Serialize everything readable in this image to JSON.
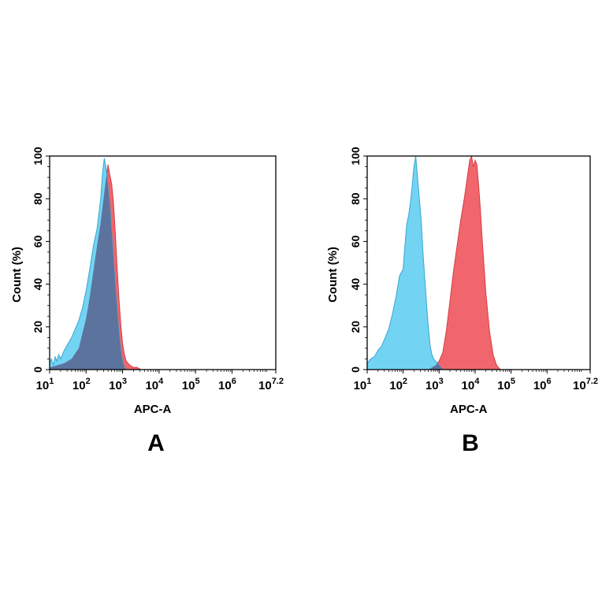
{
  "colors": {
    "control_fill": "#73d3f3",
    "control_edge": "#3aa6cf",
    "stained_fill": "#f0666c",
    "stained_edge": "#d43b44",
    "overlap_fill": "#5b6e99"
  },
  "chart_data": [
    {
      "panel": "A",
      "type": "area",
      "xlabel": "APC-A",
      "ylabel": "Count  (%)",
      "x_scale": "log",
      "xlim": [
        1,
        7.2
      ],
      "ylim": [
        0,
        100
      ],
      "x_ticks": [
        {
          "base": "10",
          "exp": "1"
        },
        {
          "base": "10",
          "exp": "2"
        },
        {
          "base": "10",
          "exp": "3"
        },
        {
          "base": "10",
          "exp": "4"
        },
        {
          "base": "10",
          "exp": "5"
        },
        {
          "base": "10",
          "exp": "6"
        },
        {
          "base": "10",
          "exp": "7.2"
        }
      ],
      "y_ticks": [
        "0",
        "20",
        "40",
        "60",
        "80",
        "100"
      ],
      "series": [
        {
          "color": "#73d3f3",
          "log10_x": [
            1.0,
            1.05,
            1.1,
            1.15,
            1.2,
            1.25,
            1.3,
            1.4,
            1.5,
            1.6,
            1.7,
            1.8,
            1.9,
            2.0,
            2.1,
            2.2,
            2.3,
            2.35,
            2.4,
            2.45,
            2.5,
            2.55,
            2.6,
            2.65,
            2.7,
            2.75,
            2.8,
            2.85,
            2.9,
            2.95,
            3.0,
            3.05,
            3.1
          ],
          "values": [
            3,
            5,
            2,
            6,
            4,
            7,
            5,
            9,
            12,
            15,
            19,
            23,
            29,
            37,
            47,
            58,
            66,
            73,
            80,
            92,
            99,
            94,
            85,
            77,
            64,
            52,
            39,
            28,
            17,
            9,
            4,
            1,
            0
          ]
        },
        {
          "color": "#f0666c",
          "log10_x": [
            1.0,
            1.2,
            1.4,
            1.6,
            1.8,
            2.0,
            2.1,
            2.2,
            2.3,
            2.4,
            2.45,
            2.5,
            2.55,
            2.6,
            2.65,
            2.7,
            2.75,
            2.8,
            2.85,
            2.9,
            2.95,
            3.0,
            3.05,
            3.1,
            3.2,
            3.3,
            3.4,
            3.5
          ],
          "values": [
            1,
            2,
            3,
            5,
            10,
            24,
            34,
            46,
            58,
            69,
            76,
            83,
            90,
            96,
            91,
            87,
            78,
            64,
            48,
            33,
            21,
            12,
            7,
            4,
            2,
            1,
            1,
            0
          ]
        }
      ]
    },
    {
      "panel": "B",
      "type": "area",
      "xlabel": "APC-A",
      "ylabel": "Count  (%)",
      "x_scale": "log",
      "xlim": [
        1,
        7.2
      ],
      "ylim": [
        0,
        100
      ],
      "x_ticks": [
        {
          "base": "10",
          "exp": "1"
        },
        {
          "base": "10",
          "exp": "2"
        },
        {
          "base": "10",
          "exp": "3"
        },
        {
          "base": "10",
          "exp": "4"
        },
        {
          "base": "10",
          "exp": "5"
        },
        {
          "base": "10",
          "exp": "6"
        },
        {
          "base": "10",
          "exp": "7.2"
        }
      ],
      "y_ticks": [
        "0",
        "20",
        "40",
        "60",
        "80",
        "100"
      ],
      "series": [
        {
          "color": "#73d3f3",
          "log10_x": [
            1.0,
            1.1,
            1.2,
            1.3,
            1.4,
            1.5,
            1.6,
            1.7,
            1.8,
            1.9,
            2.0,
            2.05,
            2.1,
            2.15,
            2.2,
            2.25,
            2.3,
            2.35,
            2.4,
            2.45,
            2.5,
            2.55,
            2.6,
            2.65,
            2.7,
            2.75,
            2.8,
            2.85,
            2.9,
            2.95,
            3.0,
            3.05,
            3.1
          ],
          "values": [
            3,
            5,
            6,
            9,
            11,
            15,
            19,
            26,
            34,
            44,
            47,
            58,
            68,
            72,
            78,
            86,
            95,
            100,
            90,
            80,
            70,
            55,
            43,
            31,
            20,
            11,
            7,
            5,
            4,
            3,
            2,
            1,
            0
          ]
        },
        {
          "color": "#f0666c",
          "log10_x": [
            2.7,
            2.8,
            2.9,
            3.0,
            3.1,
            3.2,
            3.3,
            3.4,
            3.5,
            3.6,
            3.7,
            3.8,
            3.85,
            3.9,
            3.95,
            4.0,
            4.05,
            4.1,
            4.15,
            4.2,
            4.3,
            4.4,
            4.5,
            4.6,
            4.7
          ],
          "values": [
            0,
            1,
            2,
            4,
            8,
            18,
            32,
            46,
            58,
            70,
            80,
            92,
            98,
            100,
            95,
            98,
            96,
            86,
            74,
            60,
            36,
            18,
            7,
            2,
            0
          ]
        }
      ]
    }
  ],
  "panels": [
    {
      "letter": "A"
    },
    {
      "letter": "B"
    }
  ]
}
